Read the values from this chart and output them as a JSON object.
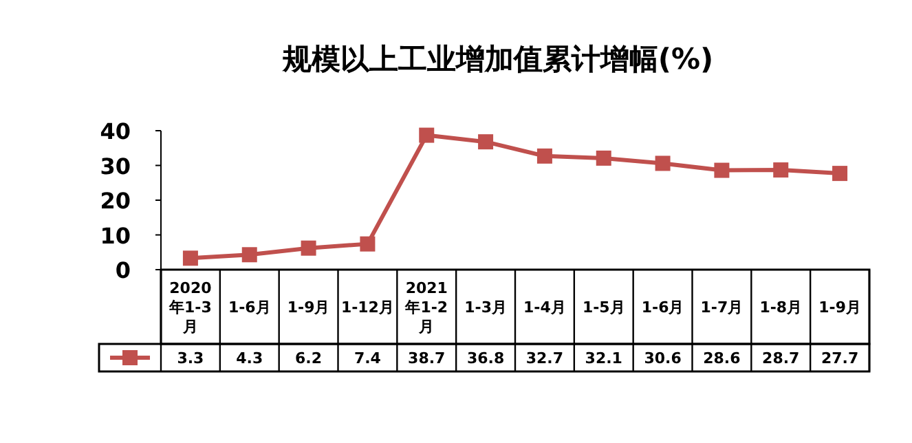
{
  "chart_data": {
    "type": "line",
    "title": "规模以上工业增加值累计增幅(%)",
    "categories": [
      "2020年1-3月",
      "1-6月",
      "1-9月",
      "1-12月",
      "2021年1-2月",
      "1-3月",
      "1-4月",
      "1-5月",
      "1-6月",
      "1-7月",
      "1-8月",
      "1-9月"
    ],
    "series": [
      {
        "color": "#c0504d",
        "values": [
          3.3,
          4.3,
          6.2,
          7.4,
          38.7,
          36.8,
          32.7,
          32.1,
          30.6,
          28.6,
          28.7,
          27.7
        ]
      }
    ],
    "ylim": [
      0,
      40
    ],
    "yticks": [
      0,
      10,
      20,
      30,
      40
    ],
    "marker": "square",
    "line_style": "solid",
    "data_labels": true,
    "grid": false
  }
}
